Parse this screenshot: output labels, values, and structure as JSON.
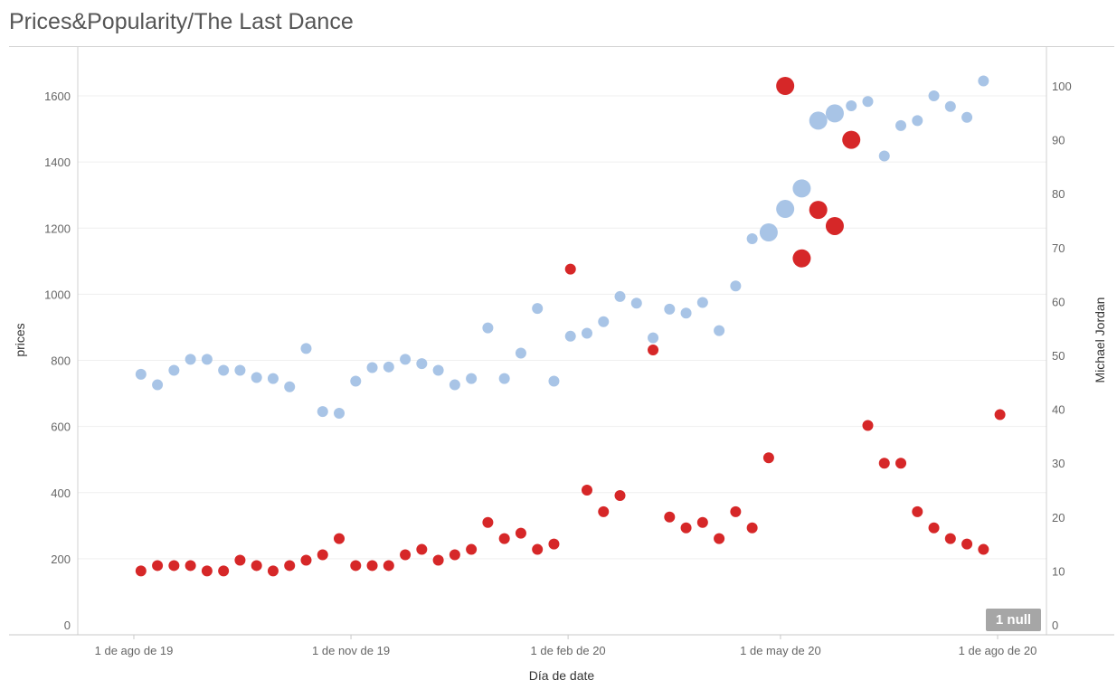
{
  "title": "Prices&Popularity/The Last Dance",
  "null_badge": "1 null",
  "chart_data": {
    "type": "scatter",
    "xlabel": "Día de date",
    "ylabel_left": "prices",
    "ylabel_right": "Michael Jordan",
    "ylim_left": [
      0,
      1600
    ],
    "ylim_right": [
      0,
      100
    ],
    "left_ticks": [
      0,
      200,
      400,
      600,
      800,
      1000,
      1200,
      1400,
      1600
    ],
    "right_ticks": [
      0,
      10,
      20,
      30,
      40,
      50,
      60,
      70,
      80,
      90,
      100
    ],
    "x_tick_labels": [
      "1 de ago de 19",
      "1 de nov de 19",
      "1 de feb de 20",
      "1 de may de 20",
      "1 de ago de 20"
    ],
    "x_tick_dates": [
      "2019-08-01",
      "2019-11-01",
      "2020-02-01",
      "2020-05-01",
      "2020-08-01"
    ],
    "colors": {
      "prices": "#a8c4e6",
      "popularity": "#d62728"
    },
    "prices": [
      {
        "date": "2019-08-04",
        "value": 758
      },
      {
        "date": "2019-08-11",
        "value": 726
      },
      {
        "date": "2019-08-18",
        "value": 770
      },
      {
        "date": "2019-08-25",
        "value": 803
      },
      {
        "date": "2019-09-01",
        "value": 803
      },
      {
        "date": "2019-09-08",
        "value": 770
      },
      {
        "date": "2019-09-15",
        "value": 770
      },
      {
        "date": "2019-09-22",
        "value": 748
      },
      {
        "date": "2019-09-29",
        "value": 745
      },
      {
        "date": "2019-10-06",
        "value": 720
      },
      {
        "date": "2019-10-13",
        "value": 836
      },
      {
        "date": "2019-10-20",
        "value": 645
      },
      {
        "date": "2019-10-27",
        "value": 640
      },
      {
        "date": "2019-11-03",
        "value": 737
      },
      {
        "date": "2019-11-10",
        "value": 778
      },
      {
        "date": "2019-11-17",
        "value": 780
      },
      {
        "date": "2019-11-24",
        "value": 803
      },
      {
        "date": "2019-12-01",
        "value": 790
      },
      {
        "date": "2019-12-08",
        "value": 770
      },
      {
        "date": "2019-12-15",
        "value": 726
      },
      {
        "date": "2019-12-22",
        "value": 745
      },
      {
        "date": "2019-12-29",
        "value": 898
      },
      {
        "date": "2020-01-05",
        "value": 745
      },
      {
        "date": "2020-01-12",
        "value": 822
      },
      {
        "date": "2020-01-19",
        "value": 957
      },
      {
        "date": "2020-01-26",
        "value": 737
      },
      {
        "date": "2020-02-02",
        "value": 873
      },
      {
        "date": "2020-02-09",
        "value": 882
      },
      {
        "date": "2020-02-16",
        "value": 917
      },
      {
        "date": "2020-02-23",
        "value": 993
      },
      {
        "date": "2020-03-01",
        "value": 973
      },
      {
        "date": "2020-03-08",
        "value": 868
      },
      {
        "date": "2020-03-15",
        "value": 955
      },
      {
        "date": "2020-03-22",
        "value": 943
      },
      {
        "date": "2020-03-29",
        "value": 975
      },
      {
        "date": "2020-04-05",
        "value": 890
      },
      {
        "date": "2020-04-12",
        "value": 1025
      },
      {
        "date": "2020-04-19",
        "value": 1168
      },
      {
        "date": "2020-04-26",
        "value": 1187,
        "size": 1
      },
      {
        "date": "2020-05-03",
        "value": 1258,
        "size": 1
      },
      {
        "date": "2020-05-10",
        "value": 1320,
        "size": 1
      },
      {
        "date": "2020-05-17",
        "value": 1525,
        "size": 1
      },
      {
        "date": "2020-05-24",
        "value": 1547,
        "size": 1
      },
      {
        "date": "2020-05-31",
        "value": 1570
      },
      {
        "date": "2020-06-07",
        "value": 1583
      },
      {
        "date": "2020-06-14",
        "value": 1418
      },
      {
        "date": "2020-06-21",
        "value": 1510
      },
      {
        "date": "2020-06-28",
        "value": 1525
      },
      {
        "date": "2020-07-05",
        "value": 1600
      },
      {
        "date": "2020-07-12",
        "value": 1568
      },
      {
        "date": "2020-07-19",
        "value": 1535
      },
      {
        "date": "2020-07-26",
        "value": 1645
      }
    ],
    "popularity": [
      {
        "date": "2019-08-04",
        "value": 10
      },
      {
        "date": "2019-08-11",
        "value": 11
      },
      {
        "date": "2019-08-18",
        "value": 11
      },
      {
        "date": "2019-08-25",
        "value": 11
      },
      {
        "date": "2019-09-01",
        "value": 10
      },
      {
        "date": "2019-09-08",
        "value": 10
      },
      {
        "date": "2019-09-15",
        "value": 12
      },
      {
        "date": "2019-09-22",
        "value": 11
      },
      {
        "date": "2019-09-29",
        "value": 10
      },
      {
        "date": "2019-10-06",
        "value": 11
      },
      {
        "date": "2019-10-13",
        "value": 12
      },
      {
        "date": "2019-10-20",
        "value": 13
      },
      {
        "date": "2019-10-27",
        "value": 16
      },
      {
        "date": "2019-11-03",
        "value": 11
      },
      {
        "date": "2019-11-10",
        "value": 11
      },
      {
        "date": "2019-11-17",
        "value": 11
      },
      {
        "date": "2019-11-24",
        "value": 13
      },
      {
        "date": "2019-12-01",
        "value": 14
      },
      {
        "date": "2019-12-08",
        "value": 12
      },
      {
        "date": "2019-12-15",
        "value": 13
      },
      {
        "date": "2019-12-22",
        "value": 14
      },
      {
        "date": "2019-12-29",
        "value": 19
      },
      {
        "date": "2020-01-05",
        "value": 16
      },
      {
        "date": "2020-01-12",
        "value": 17
      },
      {
        "date": "2020-01-19",
        "value": 14
      },
      {
        "date": "2020-01-26",
        "value": 15
      },
      {
        "date": "2020-02-02",
        "value": 66
      },
      {
        "date": "2020-02-09",
        "value": 25
      },
      {
        "date": "2020-02-16",
        "value": 21
      },
      {
        "date": "2020-02-23",
        "value": 24
      },
      {
        "date": "2020-03-08",
        "value": 51
      },
      {
        "date": "2020-03-15",
        "value": 20
      },
      {
        "date": "2020-03-22",
        "value": 18
      },
      {
        "date": "2020-03-29",
        "value": 19
      },
      {
        "date": "2020-04-05",
        "value": 16
      },
      {
        "date": "2020-04-12",
        "value": 21
      },
      {
        "date": "2020-04-19",
        "value": 18
      },
      {
        "date": "2020-04-26",
        "value": 31
      },
      {
        "date": "2020-05-03",
        "value": 100,
        "size": 1
      },
      {
        "date": "2020-05-10",
        "value": 68,
        "size": 1
      },
      {
        "date": "2020-05-17",
        "value": 77,
        "size": 1
      },
      {
        "date": "2020-05-24",
        "value": 74,
        "size": 1
      },
      {
        "date": "2020-05-31",
        "value": 90,
        "size": 1
      },
      {
        "date": "2020-06-07",
        "value": 37
      },
      {
        "date": "2020-06-14",
        "value": 30
      },
      {
        "date": "2020-06-21",
        "value": 30
      },
      {
        "date": "2020-06-28",
        "value": 21
      },
      {
        "date": "2020-07-05",
        "value": 18
      },
      {
        "date": "2020-07-12",
        "value": 16
      },
      {
        "date": "2020-07-19",
        "value": 15
      },
      {
        "date": "2020-07-26",
        "value": 14
      },
      {
        "date": "2020-08-02",
        "value": 39
      }
    ]
  }
}
